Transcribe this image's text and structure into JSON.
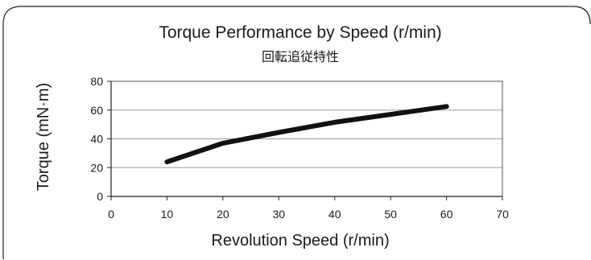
{
  "chart_data": {
    "type": "line",
    "title": "Torque Performance by Speed (r/min)",
    "subtitle": "回転追従特性",
    "xlabel": "Revolution Speed (r/min)",
    "ylabel": "Torque (mN·m)",
    "xlim": [
      0,
      70
    ],
    "ylim": [
      0,
      80
    ],
    "xticks": [
      0,
      10,
      20,
      30,
      40,
      50,
      60,
      70
    ],
    "yticks": [
      0,
      20,
      40,
      60,
      80
    ],
    "grid": true,
    "series": [
      {
        "x": [
          10,
          20,
          30,
          40,
          50,
          60
        ],
        "y": [
          24,
          37,
          44.5,
          51.5,
          57,
          62.5
        ]
      }
    ],
    "colors": {
      "line": "#111111",
      "grid": "#9a9a9a"
    }
  }
}
